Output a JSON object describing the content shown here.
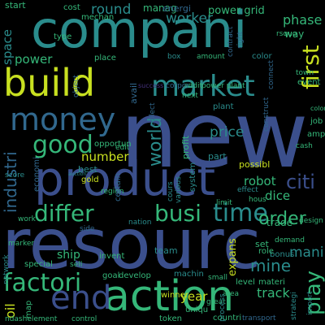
{
  "background": "#000000",
  "palette": {
    "navy": "#3b4f8c",
    "teal": "#2a8c8c",
    "green": "#35b779",
    "lime": "#c8e020",
    "purple": "#46327e",
    "blue": "#31688e"
  },
  "words": [
    "new",
    "resourc",
    "compani",
    "product",
    "action",
    "build",
    "market",
    "money",
    "end",
    "good",
    "factori",
    "time",
    "differ",
    "busi",
    "first",
    "order",
    "citi",
    "play",
    "world",
    "price",
    "industri",
    "mine",
    "round",
    "worker",
    "power grid",
    "phase",
    "space",
    "power",
    "oil",
    "number",
    "mani",
    "robot",
    "dice",
    "trade",
    "year",
    "track",
    "ship",
    "expans",
    "start",
    "type",
    "way",
    "best",
    "part",
    "possibl",
    "manag",
    "energi",
    "cost",
    "market",
    "power plant",
    "profit",
    "plant",
    "avail",
    "economi",
    "system",
    "region",
    "gold",
    "opportun",
    "certain",
    "edit",
    "special",
    "team",
    "develop",
    "winner",
    "event",
    "bonus",
    "amp",
    "job",
    "color",
    "box",
    "amount",
    "connect",
    "effect",
    "limit",
    "set",
    "role",
    "level",
    "materi",
    "demand",
    "strategi",
    "import",
    "uniqu",
    "token",
    "countri",
    "transport",
    "control",
    "map",
    "mechan",
    "network",
    "machin",
    "goal",
    "invent",
    "place",
    "hous",
    "cash",
    "design",
    "game",
    "score",
    "contract",
    "collect",
    "increas",
    "great",
    "work",
    "area",
    "small",
    "next",
    "right",
    "addit",
    "construct",
    "process",
    "marker",
    "sell",
    "side",
    "nation",
    "cours",
    "various",
    "love",
    "rsquo",
    "build",
    "ndashelement",
    "auction",
    "corpor",
    "success",
    "age",
    "field",
    "coloni",
    "engin",
    "town",
    "card",
    "left",
    "rule",
    "object"
  ]
}
